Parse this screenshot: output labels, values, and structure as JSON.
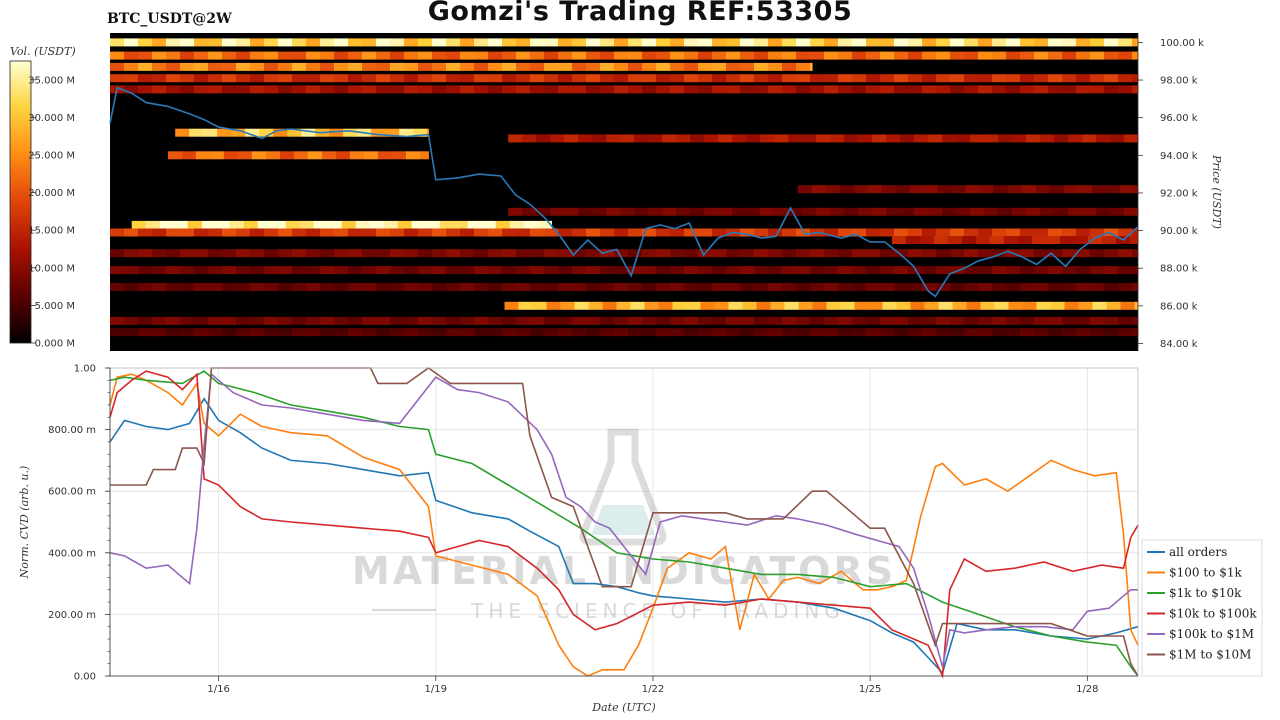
{
  "header": {
    "title": "Gomzi's Trading REF:53305",
    "pair": "BTC_USDT@2W"
  },
  "watermark": {
    "line1": "MATERIAL INDICATORS",
    "line2": "THE SCIENCE OF TRADING"
  },
  "chart_data": [
    {
      "type": "heatmap",
      "name": "orderbook-liquidity-heatmap",
      "ylabel": "Price (USDT)",
      "ylim": [
        83600,
        100500
      ],
      "y_ticks": [
        "84.00 k",
        "86.00 k",
        "88.00 k",
        "90.00 k",
        "92.00 k",
        "94.00 k",
        "96.00 k",
        "98.00 k",
        "100.00 k"
      ],
      "y_tick_values": [
        84000,
        86000,
        88000,
        90000,
        92000,
        94000,
        96000,
        98000,
        100000
      ],
      "colorbar": {
        "label": "Vol. (USDT)",
        "ticks": [
          "0.000 M",
          "5.000 M",
          "10.000 M",
          "15.000 M",
          "20.000 M",
          "25.000 M",
          "30.000 M",
          "35.000 M"
        ],
        "tick_values": [
          0,
          5,
          10,
          15,
          20,
          25,
          30,
          35
        ],
        "range": [
          0,
          37.5
        ],
        "colors": [
          "#000000",
          "#5a0000",
          "#a81200",
          "#e0440a",
          "#ff8c14",
          "#ffd23c",
          "#ffffd0"
        ]
      },
      "x_days": [
        14.5,
        28.7
      ],
      "bands": [
        {
          "price": 100000,
          "x0": 14.5,
          "x1": 28.7,
          "v": 33
        },
        {
          "price": 99300,
          "x0": 14.5,
          "x1": 28.7,
          "v": 22
        },
        {
          "price": 98700,
          "x0": 14.5,
          "x1": 24.2,
          "v": 24
        },
        {
          "price": 98100,
          "x0": 14.5,
          "x1": 28.7,
          "v": 16
        },
        {
          "price": 97500,
          "x0": 14.5,
          "x1": 28.7,
          "v": 12
        },
        {
          "price": 95200,
          "x0": 15.4,
          "x1": 18.9,
          "v": 30
        },
        {
          "price": 94900,
          "x0": 20.0,
          "x1": 28.7,
          "v": 13
        },
        {
          "price": 94000,
          "x0": 15.3,
          "x1": 18.9,
          "v": 22
        },
        {
          "price": 92200,
          "x0": 24.0,
          "x1": 28.7,
          "v": 9
        },
        {
          "price": 91000,
          "x0": 20.0,
          "x1": 28.7,
          "v": 8
        },
        {
          "price": 90300,
          "x0": 14.8,
          "x1": 20.6,
          "v": 37
        },
        {
          "price": 89900,
          "x0": 14.5,
          "x1": 28.7,
          "v": 17
        },
        {
          "price": 89500,
          "x0": 25.3,
          "x1": 28.7,
          "v": 14
        },
        {
          "price": 88800,
          "x0": 14.5,
          "x1": 28.7,
          "v": 9
        },
        {
          "price": 87900,
          "x0": 14.5,
          "x1": 28.7,
          "v": 8
        },
        {
          "price": 87000,
          "x0": 14.5,
          "x1": 28.7,
          "v": 7
        },
        {
          "price": 86000,
          "x0": 19.95,
          "x1": 28.7,
          "v": 28
        },
        {
          "price": 85200,
          "x0": 14.5,
          "x1": 28.7,
          "v": 8
        },
        {
          "price": 84600,
          "x0": 14.5,
          "x1": 28.7,
          "v": 6
        }
      ],
      "price_series": {
        "name": "price",
        "color": "#2a7ab9",
        "x": [
          14.5,
          14.6,
          14.8,
          15.0,
          15.3,
          15.6,
          15.8,
          16.0,
          16.3,
          16.6,
          16.8,
          17.0,
          17.4,
          17.8,
          18.2,
          18.6,
          18.9,
          19.0,
          19.3,
          19.6,
          19.9,
          20.1,
          20.3,
          20.5,
          20.7,
          20.9,
          21.1,
          21.3,
          21.5,
          21.7,
          21.9,
          22.1,
          22.3,
          22.5,
          22.7,
          22.9,
          23.1,
          23.3,
          23.5,
          23.7,
          23.9,
          24.1,
          24.3,
          24.6,
          24.8,
          25.0,
          25.2,
          25.4,
          25.6,
          25.8,
          25.9,
          26.1,
          26.3,
          26.5,
          26.7,
          26.9,
          27.1,
          27.3,
          27.5,
          27.7,
          27.9,
          28.1,
          28.3,
          28.5,
          28.7
        ],
        "y": [
          95700,
          97600,
          97300,
          96800,
          96600,
          96200,
          95900,
          95500,
          95300,
          94900,
          95300,
          95400,
          95200,
          95300,
          95100,
          95000,
          95100,
          92700,
          92800,
          93000,
          92900,
          91900,
          91400,
          90700,
          89800,
          88700,
          89500,
          88800,
          89000,
          87600,
          90100,
          90300,
          90100,
          90400,
          88700,
          89600,
          89900,
          89800,
          89600,
          89700,
          91200,
          89800,
          89900,
          89600,
          89800,
          89400,
          89400,
          88800,
          88100,
          86800,
          86500,
          87700,
          88000,
          88400,
          88600,
          88900,
          88600,
          88200,
          88800,
          88100,
          89000,
          89600,
          89900,
          89500,
          90200
        ]
      }
    },
    {
      "type": "line",
      "name": "normalized-cvd",
      "xlabel": "Date (UTC)",
      "ylabel": "Norm. CVD (arb. u.)",
      "ylim": [
        0,
        1
      ],
      "y_ticks": [
        "0.00",
        "200.00 m",
        "400.00 m",
        "600.00 m",
        "800.00 m",
        "1.00"
      ],
      "y_tick_values": [
        0,
        0.2,
        0.4,
        0.6,
        0.8,
        1.0
      ],
      "x_ticks": [
        "1/16",
        "1/19",
        "1/22",
        "1/25",
        "1/28"
      ],
      "x_tick_values": [
        16,
        19,
        22,
        25,
        28
      ],
      "xlim": [
        14.5,
        28.7
      ],
      "grid": true,
      "legend": "right",
      "series": [
        {
          "name": "all orders",
          "color": "#1f77b4",
          "x": [
            14.5,
            14.7,
            15.0,
            15.3,
            15.6,
            15.8,
            16.0,
            16.3,
            16.6,
            17.0,
            17.5,
            18.0,
            18.5,
            18.9,
            19.0,
            19.5,
            20.0,
            20.3,
            20.7,
            20.9,
            21.2,
            21.5,
            21.8,
            22.0,
            22.5,
            23.0,
            23.5,
            24.0,
            24.5,
            25.0,
            25.3,
            25.6,
            25.8,
            26.0,
            26.2,
            26.6,
            27.0,
            27.5,
            28.0,
            28.4,
            28.7
          ],
          "y": [
            0.76,
            0.83,
            0.81,
            0.8,
            0.82,
            0.9,
            0.83,
            0.79,
            0.74,
            0.7,
            0.69,
            0.67,
            0.65,
            0.66,
            0.57,
            0.53,
            0.51,
            0.47,
            0.42,
            0.3,
            0.3,
            0.29,
            0.27,
            0.26,
            0.25,
            0.24,
            0.25,
            0.24,
            0.22,
            0.18,
            0.14,
            0.11,
            0.06,
            0.01,
            0.17,
            0.15,
            0.15,
            0.13,
            0.12,
            0.14,
            0.16
          ]
        },
        {
          "name": "$100 to $1k",
          "color": "#ff7f0e",
          "x": [
            14.5,
            14.6,
            14.8,
            15.0,
            15.3,
            15.5,
            15.7,
            15.8,
            16.0,
            16.3,
            16.6,
            17.0,
            17.5,
            18.0,
            18.5,
            18.9,
            19.0,
            19.5,
            20.0,
            20.4,
            20.7,
            20.9,
            21.1,
            21.3,
            21.6,
            21.8,
            22.0,
            22.2,
            22.5,
            22.8,
            23.0,
            23.2,
            23.4,
            23.6,
            23.8,
            24.0,
            24.3,
            24.6,
            24.9,
            25.1,
            25.3,
            25.5,
            25.7,
            25.9,
            26.0,
            26.3,
            26.6,
            26.9,
            27.2,
            27.5,
            27.8,
            28.1,
            28.4,
            28.5,
            28.6,
            28.7
          ],
          "y": [
            0.88,
            0.97,
            0.98,
            0.96,
            0.92,
            0.88,
            0.95,
            0.82,
            0.78,
            0.85,
            0.81,
            0.79,
            0.78,
            0.71,
            0.67,
            0.55,
            0.39,
            0.36,
            0.33,
            0.26,
            0.1,
            0.03,
            0.0,
            0.02,
            0.02,
            0.1,
            0.22,
            0.35,
            0.4,
            0.38,
            0.42,
            0.15,
            0.33,
            0.25,
            0.31,
            0.32,
            0.3,
            0.34,
            0.28,
            0.28,
            0.29,
            0.31,
            0.52,
            0.68,
            0.69,
            0.62,
            0.64,
            0.6,
            0.65,
            0.7,
            0.67,
            0.65,
            0.66,
            0.46,
            0.15,
            0.1
          ]
        },
        {
          "name": "$1k to $10k",
          "color": "#2ca02c",
          "x": [
            14.5,
            14.7,
            15.0,
            15.5,
            15.8,
            16.0,
            16.5,
            17.0,
            17.5,
            18.0,
            18.5,
            18.9,
            19.0,
            19.5,
            20.0,
            20.5,
            21.0,
            21.5,
            22.0,
            22.5,
            23.0,
            23.5,
            24.0,
            24.5,
            25.0,
            25.5,
            26.0,
            26.5,
            27.0,
            27.5,
            28.0,
            28.4,
            28.6,
            28.7
          ],
          "y": [
            0.96,
            0.97,
            0.96,
            0.95,
            0.99,
            0.95,
            0.92,
            0.88,
            0.86,
            0.84,
            0.81,
            0.8,
            0.72,
            0.69,
            0.62,
            0.55,
            0.48,
            0.4,
            0.38,
            0.37,
            0.35,
            0.33,
            0.33,
            0.32,
            0.29,
            0.3,
            0.24,
            0.2,
            0.16,
            0.13,
            0.11,
            0.1,
            0.03,
            0.0
          ]
        },
        {
          "name": "$10k to $100k",
          "color": "#d62728",
          "x": [
            14.5,
            14.6,
            14.8,
            15.0,
            15.3,
            15.5,
            15.7,
            15.8,
            16.0,
            16.3,
            16.6,
            17.0,
            17.5,
            18.0,
            18.5,
            18.9,
            19.0,
            19.3,
            19.6,
            20.0,
            20.4,
            20.7,
            20.9,
            21.2,
            21.5,
            22.0,
            22.5,
            23.0,
            23.5,
            24.0,
            24.5,
            25.0,
            25.3,
            25.6,
            25.8,
            26.0,
            26.1,
            26.3,
            26.6,
            27.0,
            27.4,
            27.8,
            28.2,
            28.5,
            28.6,
            28.7
          ],
          "y": [
            0.84,
            0.92,
            0.96,
            0.99,
            0.97,
            0.93,
            0.98,
            0.64,
            0.62,
            0.55,
            0.51,
            0.5,
            0.49,
            0.48,
            0.47,
            0.45,
            0.4,
            0.42,
            0.44,
            0.42,
            0.35,
            0.28,
            0.2,
            0.15,
            0.17,
            0.23,
            0.24,
            0.23,
            0.25,
            0.24,
            0.23,
            0.22,
            0.15,
            0.12,
            0.1,
            0.0,
            0.28,
            0.38,
            0.34,
            0.35,
            0.37,
            0.34,
            0.36,
            0.35,
            0.45,
            0.49
          ]
        },
        {
          "name": "$100k to $1M",
          "color": "#9467bd",
          "x": [
            14.5,
            14.7,
            15.0,
            15.3,
            15.6,
            15.7,
            15.8,
            15.9,
            16.2,
            16.6,
            17.0,
            17.5,
            18.0,
            18.5,
            18.9,
            19.0,
            19.3,
            19.6,
            20.0,
            20.4,
            20.6,
            20.8,
            21.0,
            21.2,
            21.4,
            21.6,
            21.9,
            22.1,
            22.4,
            22.7,
            23.0,
            23.3,
            23.7,
            24.0,
            24.4,
            24.8,
            25.1,
            25.4,
            25.6,
            25.8,
            26.0,
            26.1,
            26.3,
            26.6,
            27.0,
            27.4,
            27.8,
            28.0,
            28.3,
            28.6,
            28.7
          ],
          "y": [
            0.4,
            0.39,
            0.35,
            0.36,
            0.3,
            0.48,
            0.75,
            0.98,
            0.92,
            0.88,
            0.87,
            0.85,
            0.83,
            0.82,
            0.94,
            0.97,
            0.93,
            0.92,
            0.89,
            0.8,
            0.72,
            0.58,
            0.55,
            0.5,
            0.48,
            0.42,
            0.33,
            0.5,
            0.52,
            0.51,
            0.5,
            0.49,
            0.52,
            0.51,
            0.49,
            0.46,
            0.44,
            0.42,
            0.35,
            0.2,
            0.03,
            0.15,
            0.14,
            0.15,
            0.16,
            0.16,
            0.15,
            0.21,
            0.22,
            0.28,
            0.28
          ]
        },
        {
          "name": "$1M to $10M",
          "color": "#8c564b",
          "x": [
            14.5,
            15.0,
            15.1,
            15.4,
            15.5,
            15.7,
            15.8,
            15.9,
            18.1,
            18.2,
            18.6,
            18.9,
            19.2,
            19.8,
            20.2,
            20.3,
            20.6,
            20.9,
            21.3,
            21.7,
            22.0,
            23.0,
            23.3,
            23.8,
            24.2,
            24.4,
            25.0,
            25.2,
            25.6,
            25.9,
            26.0,
            26.4,
            27.0,
            27.5,
            28.0,
            28.5,
            28.6,
            28.7
          ],
          "y": [
            0.62,
            0.62,
            0.67,
            0.67,
            0.74,
            0.74,
            0.69,
            1.0,
            1.0,
            0.95,
            0.95,
            1.0,
            0.95,
            0.95,
            0.95,
            0.78,
            0.58,
            0.55,
            0.29,
            0.29,
            0.53,
            0.53,
            0.51,
            0.51,
            0.6,
            0.6,
            0.48,
            0.48,
            0.3,
            0.1,
            0.17,
            0.17,
            0.17,
            0.17,
            0.13,
            0.13,
            0.04,
            0.0
          ]
        }
      ]
    }
  ]
}
